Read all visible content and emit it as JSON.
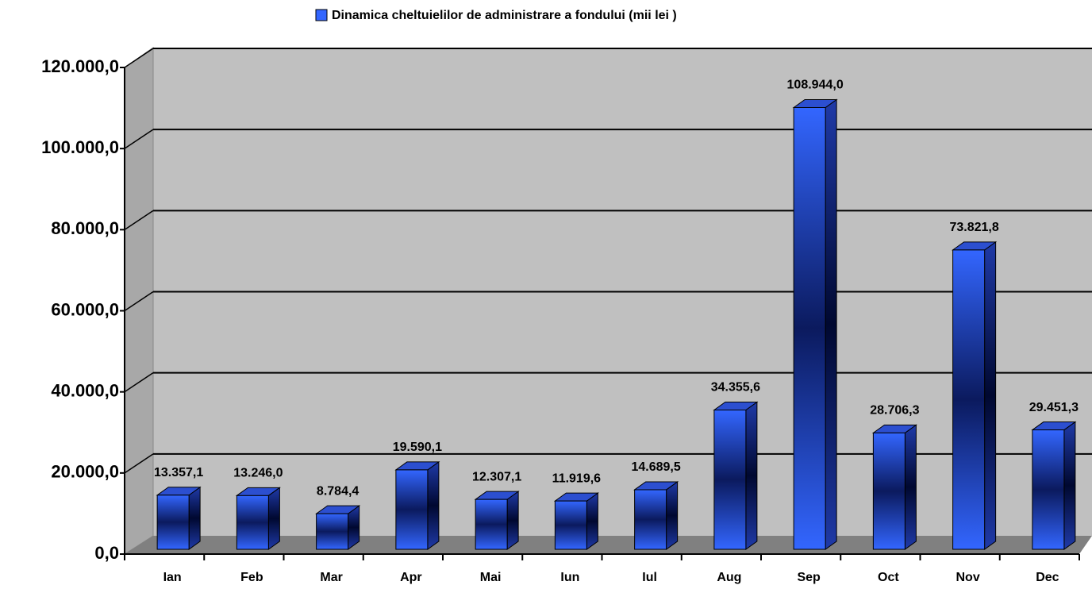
{
  "chart_data": {
    "type": "bar3d",
    "categories": [
      "Ian",
      "Feb",
      "Mar",
      "Apr",
      "Mai",
      "Iun",
      "Iul",
      "Aug",
      "Sep",
      "Oct",
      "Nov",
      "Dec"
    ],
    "series": [
      {
        "name": "Dinamica cheltuielilor de administrare a fondului (mii lei )",
        "color": "#3366ff",
        "values": [
          13357.1,
          13246.0,
          8784.4,
          19590.1,
          12307.1,
          11919.6,
          14689.5,
          34355.6,
          108944.0,
          28706.3,
          73821.8,
          29451.3
        ],
        "value_labels": [
          "13.357,1",
          "13.246,0",
          "8.784,4",
          "19.590,1",
          "12.307,1",
          "11.919,6",
          "14.689,5",
          "34.355,6",
          "108.944,0",
          "28.706,3",
          "73.821,8",
          "29.451,3"
        ]
      }
    ],
    "ylim": [
      0,
      120000
    ],
    "yticks": [
      {
        "value": 0,
        "label": "0,0"
      },
      {
        "value": 20000,
        "label": "20.000,0"
      },
      {
        "value": 40000,
        "label": "40.000,0"
      },
      {
        "value": 60000,
        "label": "60.000,0"
      },
      {
        "value": 80000,
        "label": "80.000,0"
      },
      {
        "value": 100000,
        "label": "100.000,0"
      },
      {
        "value": 120000,
        "label": "120.000,0"
      }
    ],
    "grid": true,
    "legend": "top"
  }
}
